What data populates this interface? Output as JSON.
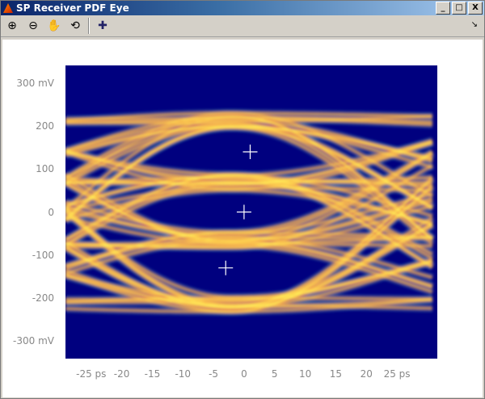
{
  "window": {
    "title": "SP Receiver PDF Eye",
    "minimize": "_",
    "maximize": "□",
    "close": "X"
  },
  "toolbar": {
    "items": [
      {
        "name": "zoom-in-icon",
        "glyph": "⊕"
      },
      {
        "name": "zoom-out-icon",
        "glyph": "⊖"
      },
      {
        "name": "pan-hand-icon",
        "glyph": "✋"
      },
      {
        "name": "rotate-3d-icon",
        "glyph": "⟲"
      },
      {
        "name": "data-cursor-icon",
        "glyph": "✚"
      }
    ],
    "dock": "↘"
  },
  "chart_data": {
    "type": "heatmap",
    "description_kind": "eye diagram probability density",
    "x_ticks": [
      "-25 ps",
      "-20",
      "-15",
      "-10",
      "-5",
      "0",
      "5",
      "10",
      "15",
      "20",
      "25 ps"
    ],
    "x_tick_values": [
      -25,
      -20,
      -15,
      -10,
      -5,
      0,
      5,
      10,
      15,
      20,
      25
    ],
    "y_ticks": [
      "300 mV",
      "200",
      "100",
      "0",
      "-100",
      "-200",
      "-300 mV"
    ],
    "y_tick_values": [
      300,
      200,
      100,
      0,
      -100,
      -200,
      -300
    ],
    "xlim": [
      -29.2,
      31.6
    ],
    "ylim": [
      -341,
      341
    ],
    "eye_centers": [
      {
        "x": 1,
        "y": 140
      },
      {
        "x": 0,
        "y": 0
      },
      {
        "x": -3,
        "y": -130
      }
    ],
    "colors": {
      "background": "#00007f",
      "low": "#40c0c0",
      "mid": "#e03060",
      "high": "#ffff60"
    }
  }
}
